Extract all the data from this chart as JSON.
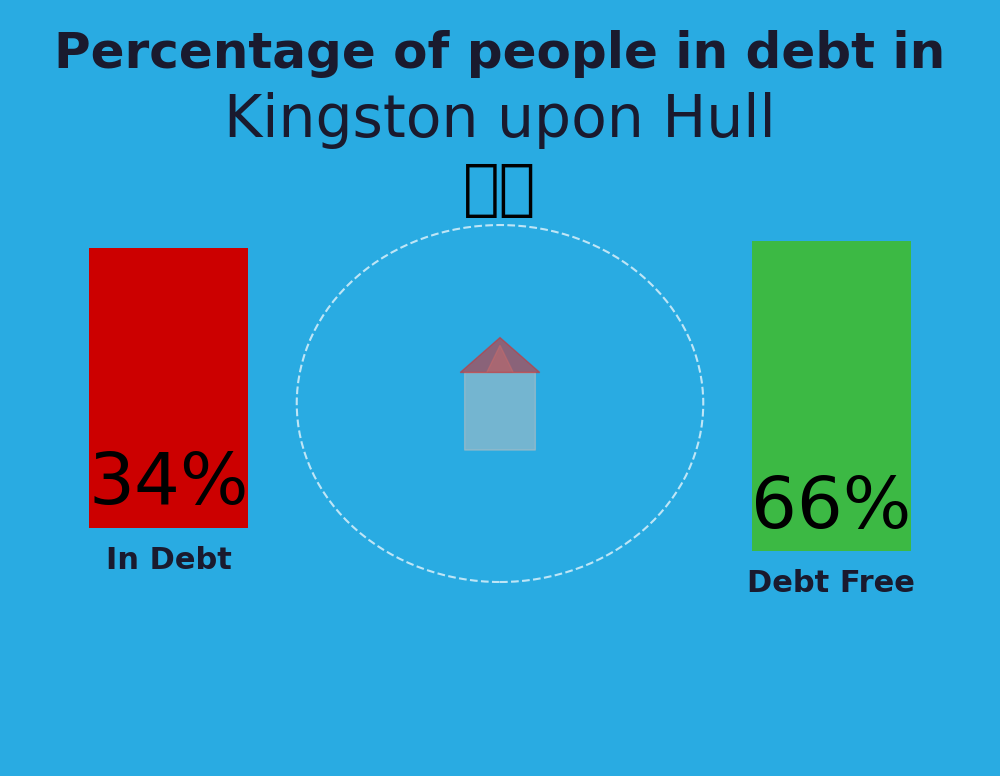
{
  "title_line1": "Percentage of people in debt in",
  "title_line2": "Kingston upon Hull",
  "background_color": "#29ABE2",
  "bar1_value": 34,
  "bar1_label": "In Debt",
  "bar1_color": "#CC0000",
  "bar1_pct": "34%",
  "bar2_value": 66,
  "bar2_label": "Debt Free",
  "bar2_color": "#3CB944",
  "bar2_pct": "66%",
  "title_fontsize": 36,
  "subtitle_fontsize": 42,
  "label_fontsize": 22,
  "pct_fontsize": 52,
  "title_color": "#1a1a2e",
  "label_color": "#1a1a2e",
  "pct_color": "#000000"
}
